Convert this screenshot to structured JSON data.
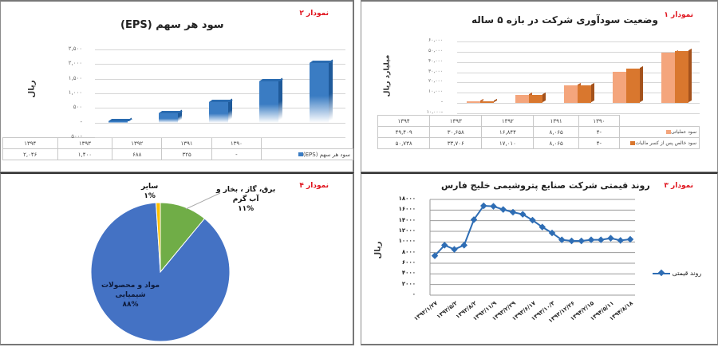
{
  "panels": {
    "eps": {
      "chart_no": "نمودار ۲",
      "title": "سود هر سهم (EPS)",
      "ylabel": "ریال",
      "yticks": [
        "۲,۵۰۰",
        "۲,۰۰۰",
        "۱,۵۰۰",
        "۱,۰۰۰",
        "۵۰۰",
        "-",
        "-۵۰۰"
      ],
      "table_header": [
        "۱۳۹۰",
        "۱۳۹۱",
        "۱۳۹۲",
        "۱۳۹۳",
        "۱۳۹۴"
      ],
      "series_label": "سود هر سهم (EPS)",
      "series_values_text": [
        "-",
        "۳۲۵",
        "۶۸۸",
        "۱,۴۰۰",
        "۲,۰۴۶"
      ],
      "color": "#3a7cc3"
    },
    "profit": {
      "chart_no": "نمودار ۱",
      "title": "وضعیت سودآوری شرکت در بازه ۵ ساله",
      "ylabel": "میلیارد ریال",
      "yticks": [
        "۶۰,۰۰۰",
        "۵۰,۰۰۰",
        "۴۰,۰۰۰",
        "۳۰,۰۰۰",
        "۲۰,۰۰۰",
        "۱۰,۰۰۰",
        "-",
        "-۱۰,۰۰۰"
      ],
      "table_header": [
        "۱۳۹۰",
        "۱۳۹۱",
        "۱۳۹۲",
        "۱۳۹۳",
        "۱۳۹۴"
      ],
      "series": [
        {
          "label": "سود عملیاتی",
          "values_text": [
            "-۴",
            "۸,۰۶۵",
            "۱۶,۸۴۴",
            "۳۰,۶۵۸",
            "۴۹,۴۰۹"
          ],
          "color": "#f4a57c"
        },
        {
          "label": "سود خالص پس از کسر مالیات",
          "values_text": [
            "-۴",
            "۸,۰۶۵",
            "۱۷,۰۱۰",
            "۳۳,۷۰۶",
            "۵۰,۷۳۸"
          ],
          "color": "#d9772e"
        }
      ]
    },
    "pie": {
      "chart_no": "نمودار ۴",
      "labels": [
        {
          "text1": "سایر",
          "text2": "۱%"
        },
        {
          "text1": "برق، گاز ، بخار و",
          "text2": "آب گرم",
          "text3": "۱۱%"
        },
        {
          "text1": "مواد و محصولات",
          "text2": "شیمیایی",
          "text3": "۸۸%"
        }
      ]
    },
    "line": {
      "chart_no": "نمودار ۳",
      "title": "روند قیمتی شرکت صنایع پتروشیمی خلیج فارس",
      "ylabel": "ریال",
      "yticks": [
        "۱۸۰۰۰",
        "۱۶۰۰۰",
        "۱۴۰۰۰",
        "۱۲۰۰۰",
        "۱۰۰۰۰",
        "۸۰۰۰",
        "۶۰۰۰",
        "۴۰۰۰",
        "۲۰۰۰",
        "۰"
      ],
      "legend": "روند قیمتی",
      "xlabels": [
        "۱۳۹۲/۱/۲۷",
        "۱۳۹۲/۵/۲",
        "۱۳۹۲/۸/۲",
        "۱۳۹۲/۱۱/۹",
        "۱۳۹۳/۲/۲۹",
        "۱۳۹۳/۶/۱۷",
        "۱۳۹۳/۱۰/۳",
        "۱۳۹۳/۱۲/۲۶",
        "۱۳۹۴/۲/۱۵",
        "۱۳۹۴/۵/۱۱",
        "۱۳۹۴/۸/۱۸"
      ]
    }
  },
  "chart_data": [
    {
      "type": "bar",
      "title": "سود هر سهم (EPS)",
      "xlabel": "",
      "ylabel": "ریال",
      "categories": [
        "1390",
        "1391",
        "1392",
        "1393",
        "1394"
      ],
      "series": [
        {
          "name": "سود هر سهم (EPS)",
          "values": [
            0,
            325,
            688,
            1400,
            2046
          ]
        }
      ],
      "ylim": [
        -500,
        2500
      ],
      "grid": true,
      "legend_position": "bottom-table"
    },
    {
      "type": "bar",
      "title": "وضعیت سودآوری شرکت در بازه ۵ ساله",
      "xlabel": "",
      "ylabel": "میلیارد ریال",
      "categories": [
        "1390",
        "1391",
        "1392",
        "1393",
        "1394"
      ],
      "series": [
        {
          "name": "سود عملیاتی",
          "values": [
            -4,
            8065,
            16844,
            30658,
            49409
          ]
        },
        {
          "name": "سود خالص پس از کسر مالیات",
          "values": [
            -4,
            8065,
            17010,
            33706,
            50738
          ]
        }
      ],
      "ylim": [
        -10000,
        60000
      ],
      "grid": true,
      "legend_position": "bottom-table"
    },
    {
      "type": "line",
      "title": "روند قیمتی شرکت صنایع پتروشیمی خلیج فارس",
      "xlabel": "",
      "ylabel": "ریال",
      "x": [
        "1392/1/27",
        "",
        "1392/5/2",
        "",
        "1392/8/2",
        "",
        "1392/11/9",
        "",
        "1393/2/29",
        "",
        "1393/6/17",
        "",
        "1393/10/3",
        "",
        "1393/12/26",
        "",
        "1394/2/15",
        "",
        "1394/5/11",
        "",
        "1394/8/18"
      ],
      "series": [
        {
          "name": "روند قیمتی",
          "values": [
            7400,
            9400,
            8600,
            9400,
            14200,
            16800,
            16700,
            16100,
            15600,
            15200,
            14100,
            12800,
            11700,
            10400,
            10200,
            10200,
            10400,
            10400,
            10700,
            10300,
            10500
          ]
        }
      ],
      "ylim": [
        0,
        18000
      ],
      "grid": true,
      "legend_position": "right"
    },
    {
      "type": "pie",
      "title": "",
      "categories": [
        "مواد و محصولات شیمیایی",
        "برق، گاز ، بخار و آب گرم",
        "سایر"
      ],
      "values": [
        88,
        11,
        1
      ],
      "colors": [
        "#4472c4",
        "#70ad47",
        "#ffc000"
      ]
    }
  ]
}
